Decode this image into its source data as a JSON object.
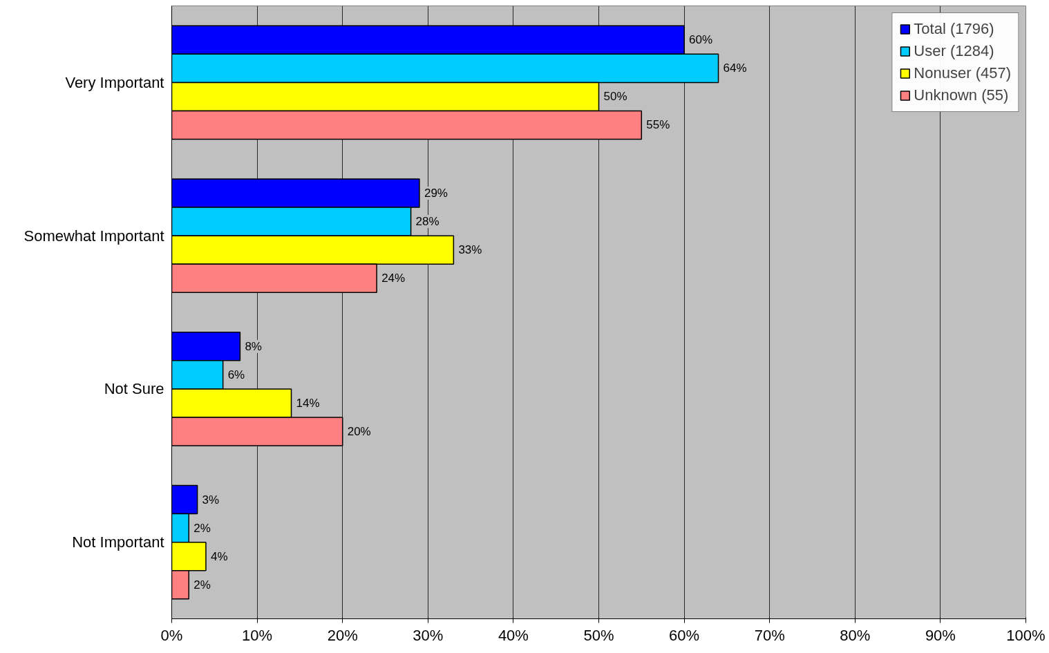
{
  "chart_data": {
    "type": "bar",
    "orientation": "horizontal",
    "categories": [
      "Very Important",
      "Somewhat Important",
      "Not Sure",
      "Not Important"
    ],
    "series": [
      {
        "name": "Total (1796)",
        "color": "#0000ff",
        "values": [
          60,
          29,
          8,
          3
        ],
        "value_labels": [
          "60%",
          "29%",
          "8%",
          "3%"
        ]
      },
      {
        "name": "User (1284)",
        "color": "#00ccff",
        "values": [
          64,
          28,
          6,
          2
        ],
        "value_labels": [
          "64%",
          "28%",
          "6%",
          "2%"
        ]
      },
      {
        "name": "Nonuser (457)",
        "color": "#ffff00",
        "values": [
          50,
          33,
          14,
          4
        ],
        "value_labels": [
          "50%",
          "33%",
          "14%",
          "4%"
        ]
      },
      {
        "name": "Unknown (55)",
        "color": "#ff8080",
        "values": [
          55,
          24,
          20,
          2
        ],
        "value_labels": [
          "55%",
          "24%",
          "20%",
          "2%"
        ]
      }
    ],
    "xlim": [
      0,
      100
    ],
    "xticks": [
      {
        "value": 0,
        "label": "0%"
      },
      {
        "value": 10,
        "label": "10%"
      },
      {
        "value": 20,
        "label": "20%"
      },
      {
        "value": 30,
        "label": "30%"
      },
      {
        "value": 40,
        "label": "40%"
      },
      {
        "value": 50,
        "label": "50%"
      },
      {
        "value": 60,
        "label": "60%"
      },
      {
        "value": 70,
        "label": "70%"
      },
      {
        "value": 80,
        "label": "80%"
      },
      {
        "value": 90,
        "label": "90%"
      },
      {
        "value": 100,
        "label": "100%"
      }
    ],
    "grid": "x",
    "legend": "top right"
  }
}
